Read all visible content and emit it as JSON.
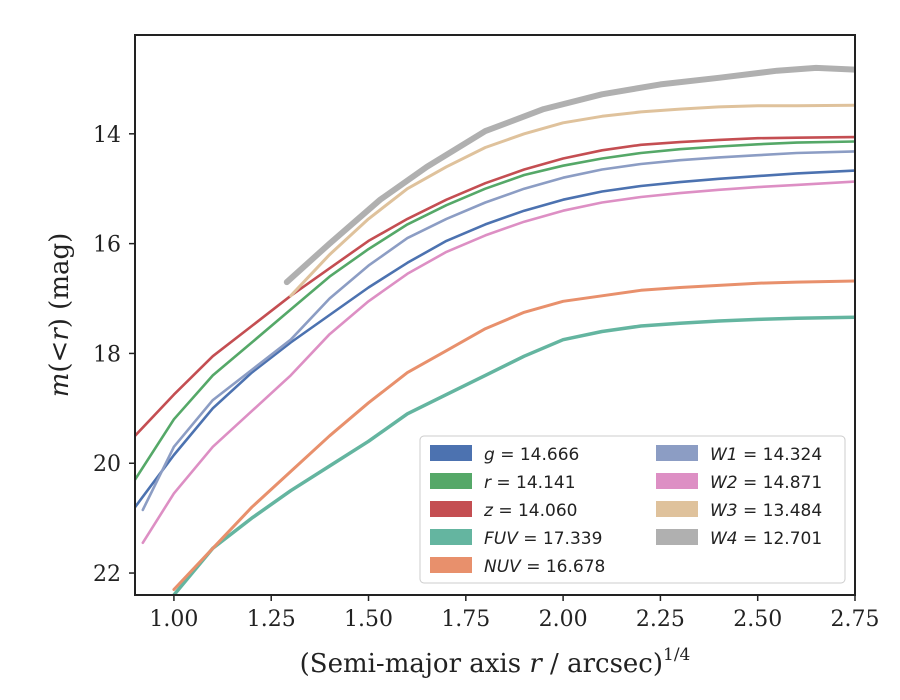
{
  "chart_data": {
    "type": "line",
    "xlabel": "(Semi-major axis r / arcsec)^{1/4}",
    "xlabel_parts": [
      "(Semi-major axis ",
      "r",
      " / arcsec)",
      "1/4"
    ],
    "ylabel": "m(<r) (mag)",
    "ylabel_parts": [
      "m",
      "(<",
      "r",
      ") (mag)"
    ],
    "xlim": [
      0.9,
      2.75
    ],
    "ylim": [
      22.4,
      12.2
    ],
    "y_inverted": true,
    "xticks": [
      1.0,
      1.25,
      1.5,
      1.75,
      2.0,
      2.25,
      2.5,
      2.75
    ],
    "xtick_labels": [
      "1.00",
      "1.25",
      "1.50",
      "1.75",
      "2.00",
      "2.25",
      "2.50",
      "2.75"
    ],
    "yticks": [
      14,
      16,
      18,
      20,
      22
    ],
    "ytick_labels": [
      "14",
      "16",
      "18",
      "20",
      "22"
    ],
    "grid": false,
    "legend_position": "lower-right",
    "legend_columns": 2,
    "series": [
      {
        "name": "g",
        "value": "14.666",
        "color": "#4c72b0",
        "x": [
          0.9,
          1.0,
          1.1,
          1.2,
          1.3,
          1.4,
          1.5,
          1.6,
          1.7,
          1.8,
          1.9,
          2.0,
          2.1,
          2.2,
          2.3,
          2.4,
          2.5,
          2.6,
          2.75
        ],
        "y": [
          20.8,
          19.85,
          19.0,
          18.35,
          17.8,
          17.3,
          16.8,
          16.35,
          15.95,
          15.65,
          15.4,
          15.2,
          15.05,
          14.95,
          14.88,
          14.82,
          14.77,
          14.72,
          14.67
        ]
      },
      {
        "name": "r",
        "value": "14.141",
        "color": "#55a868",
        "x": [
          0.9,
          1.0,
          1.1,
          1.2,
          1.3,
          1.4,
          1.5,
          1.6,
          1.7,
          1.8,
          1.9,
          2.0,
          2.1,
          2.2,
          2.3,
          2.4,
          2.5,
          2.6,
          2.75
        ],
        "y": [
          20.3,
          19.2,
          18.4,
          17.8,
          17.2,
          16.6,
          16.1,
          15.65,
          15.3,
          15.0,
          14.75,
          14.58,
          14.45,
          14.35,
          14.28,
          14.23,
          14.19,
          14.16,
          14.14
        ]
      },
      {
        "name": "z",
        "value": "14.060",
        "color": "#c44e52",
        "x": [
          0.9,
          1.0,
          1.1,
          1.2,
          1.3,
          1.4,
          1.5,
          1.6,
          1.7,
          1.8,
          1.9,
          2.0,
          2.1,
          2.2,
          2.3,
          2.4,
          2.5,
          2.6,
          2.75
        ],
        "y": [
          19.5,
          18.75,
          18.05,
          17.5,
          16.95,
          16.45,
          15.95,
          15.55,
          15.2,
          14.9,
          14.65,
          14.45,
          14.3,
          14.2,
          14.15,
          14.11,
          14.08,
          14.07,
          14.06
        ]
      },
      {
        "name": "FUV",
        "value": "17.339",
        "color": "#64b5a0",
        "x": [
          1.0,
          1.1,
          1.2,
          1.3,
          1.4,
          1.5,
          1.6,
          1.7,
          1.8,
          1.9,
          2.0,
          2.1,
          2.2,
          2.3,
          2.4,
          2.5,
          2.6,
          2.75
        ],
        "y": [
          22.4,
          21.55,
          21.0,
          20.5,
          20.05,
          19.6,
          19.1,
          18.75,
          18.4,
          18.05,
          17.75,
          17.6,
          17.5,
          17.45,
          17.41,
          17.38,
          17.36,
          17.34
        ]
      },
      {
        "name": "NUV",
        "value": "16.678",
        "color": "#e8906c",
        "x": [
          1.0,
          1.1,
          1.2,
          1.3,
          1.4,
          1.5,
          1.6,
          1.7,
          1.8,
          1.9,
          2.0,
          2.1,
          2.2,
          2.3,
          2.4,
          2.5,
          2.6,
          2.75
        ],
        "y": [
          22.3,
          21.55,
          20.8,
          20.15,
          19.5,
          18.9,
          18.35,
          17.95,
          17.55,
          17.25,
          17.05,
          16.95,
          16.85,
          16.8,
          16.76,
          16.72,
          16.7,
          16.68
        ]
      },
      {
        "name": "W1",
        "value": "14.324",
        "color": "#8c9dc4",
        "x": [
          0.92,
          1.0,
          1.1,
          1.2,
          1.3,
          1.4,
          1.5,
          1.6,
          1.7,
          1.8,
          1.9,
          2.0,
          2.1,
          2.2,
          2.3,
          2.4,
          2.5,
          2.6,
          2.75
        ],
        "y": [
          20.85,
          19.7,
          18.85,
          18.3,
          17.75,
          17.0,
          16.4,
          15.9,
          15.55,
          15.25,
          15.0,
          14.8,
          14.65,
          14.55,
          14.48,
          14.43,
          14.39,
          14.35,
          14.32
        ]
      },
      {
        "name": "W2",
        "value": "14.871",
        "color": "#dd8fc4",
        "x": [
          0.92,
          1.0,
          1.1,
          1.2,
          1.3,
          1.4,
          1.5,
          1.6,
          1.7,
          1.8,
          1.9,
          2.0,
          2.1,
          2.2,
          2.3,
          2.4,
          2.5,
          2.6,
          2.75
        ],
        "y": [
          21.45,
          20.55,
          19.7,
          19.05,
          18.4,
          17.65,
          17.05,
          16.55,
          16.15,
          15.85,
          15.6,
          15.4,
          15.25,
          15.15,
          15.08,
          15.02,
          14.97,
          14.93,
          14.87
        ]
      },
      {
        "name": "W3",
        "value": "13.484",
        "color": "#dfc29c",
        "x": [
          1.3,
          1.4,
          1.5,
          1.6,
          1.7,
          1.8,
          1.9,
          2.0,
          2.1,
          2.2,
          2.3,
          2.4,
          2.5,
          2.6,
          2.75
        ],
        "y": [
          16.95,
          16.2,
          15.55,
          15.0,
          14.6,
          14.25,
          14.0,
          13.8,
          13.68,
          13.6,
          13.55,
          13.51,
          13.49,
          13.49,
          13.48
        ]
      },
      {
        "name": "W4",
        "value": "12.701",
        "color": "#b0b0b0",
        "x": [
          1.29,
          1.4,
          1.53,
          1.65,
          1.8,
          1.95,
          2.1,
          2.25,
          2.4,
          2.55,
          2.65,
          2.75
        ],
        "y": [
          16.7,
          16.0,
          15.2,
          14.6,
          13.95,
          13.55,
          13.28,
          13.1,
          12.98,
          12.85,
          12.8,
          12.83
        ]
      }
    ]
  }
}
